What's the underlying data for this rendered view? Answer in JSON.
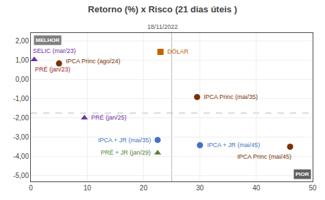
{
  "chart_data": {
    "type": "scatter",
    "title": "Retorno (%) x Risco (21 dias úteis )",
    "subtitle": "18/11/2022",
    "xlim": [
      0,
      50
    ],
    "ylim": [
      -5.3,
      2.4
    ],
    "xticks": [
      0,
      10,
      20,
      30,
      40,
      50
    ],
    "yticks": [
      {
        "value": 2.0,
        "label": "2,00"
      },
      {
        "value": 1.0,
        "label": "1,00"
      },
      {
        "value": 0.0,
        "label": "0,00"
      },
      {
        "value": -1.0,
        "label": "-1,00"
      },
      {
        "value": -2.0,
        "label": "-2,00"
      },
      {
        "value": -3.0,
        "label": "-3,00"
      },
      {
        "value": -4.0,
        "label": "-4,00"
      },
      {
        "value": -5.0,
        "label": "-5,00"
      }
    ],
    "grid": true,
    "series": [
      {
        "name": "DÓLAR",
        "color": "#c66000",
        "marker": "square",
        "x": [
          23.0
        ],
        "values": [
          1.42
        ]
      },
      {
        "name": "SELIC (mar/23)",
        "color": "#7030a0",
        "marker": "triangle",
        "x": [
          0.6
        ],
        "values": [
          1.02
        ]
      },
      {
        "name": "IPCA Princ (ago/24)",
        "color": "#7b3200",
        "marker": "circle",
        "x": [
          5.0
        ],
        "values": [
          0.82
        ]
      },
      {
        "name": "IPCA Princ (mai/35)",
        "color": "#7b3200",
        "marker": "circle",
        "x": [
          29.5
        ],
        "values": [
          -0.92
        ]
      },
      {
        "name": "PRÉ (jan/25)",
        "color": "#7030a0",
        "marker": "triangle",
        "x": [
          9.5
        ],
        "values": [
          -2.0
        ]
      },
      {
        "name": "IPCA + JR (mai/35)",
        "color": "#4472c4",
        "marker": "circle",
        "x": [
          22.5
        ],
        "values": [
          -3.15
        ]
      },
      {
        "name": "PRÉ + JR (jan/29)",
        "color": "#548235",
        "marker": "triangle",
        "x": [
          22.5
        ],
        "values": [
          -3.82
        ]
      },
      {
        "name": "IPCA + JR (mai/45)",
        "color": "#4472c4",
        "marker": "circle",
        "x": [
          30.0
        ],
        "values": [
          -3.42
        ]
      },
      {
        "name": "IPCA Princ (mai/45)",
        "color": "#7b3200",
        "marker": "circle",
        "x": [
          46.0
        ],
        "values": [
          -3.5
        ]
      }
    ],
    "annotations": [
      {
        "text": "PRÉ (jan/23)",
        "x": 0.5,
        "y": 0.6,
        "color": "#9b1c1c"
      },
      {
        "text": "MELHOR",
        "position": "top left"
      },
      {
        "text": "PIOR",
        "position": "bottom right"
      }
    ],
    "reference_lines": [
      {
        "axis": "x",
        "value": 25
      },
      {
        "axis": "y",
        "value": -1.75,
        "line_style": "dashed"
      }
    ]
  }
}
